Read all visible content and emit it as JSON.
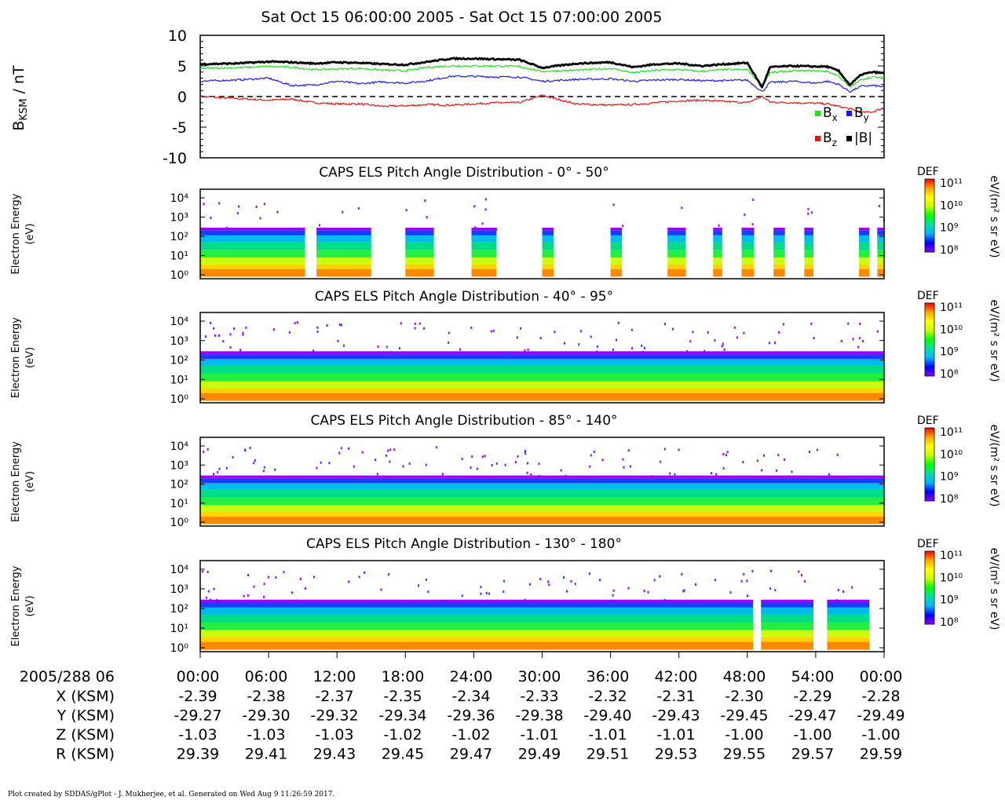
{
  "title": "Sat Oct 15 06:00:00 2005 - Sat Oct 15 07:00:00 2005",
  "footer": "Plot created by SDDAS/gPlot - J. Mukherjee, et al.  Generated on Wed Aug 9 11:26:59 2017.",
  "colors": {
    "bx": "#22dd22",
    "by": "#1a1aee",
    "bz": "#ee1111",
    "btotal": "#000000",
    "colorbar": [
      "#8b00ff",
      "#0000ff",
      "#00b4ff",
      "#00e0a0",
      "#00ff00",
      "#c8ff00",
      "#ffff00",
      "#ffa500",
      "#ff0000"
    ]
  },
  "chart_data": [
    {
      "type": "line",
      "ylabel": "B",
      "ylabel_sub": "KSM",
      "ylabel_unit": " / nT",
      "ylim": [
        -10,
        10
      ],
      "yticks": [
        "10",
        "5",
        "0",
        "-5",
        "-10"
      ],
      "zero_line": "dashed",
      "legend": [
        {
          "symbol": "B",
          "sub": "x",
          "color": "#22dd22"
        },
        {
          "symbol": "B",
          "sub": "y",
          "color": "#1a1aee"
        },
        {
          "symbol": "B",
          "sub": "z",
          "color": "#ee1111"
        },
        {
          "symbol": "|B|",
          "sub": "",
          "color": "#000000"
        }
      ],
      "x_minutes": [
        0,
        3,
        6,
        8,
        10,
        12,
        14,
        16,
        18,
        20,
        22,
        24,
        26,
        28,
        30,
        33,
        36,
        38,
        40,
        42,
        44,
        46,
        48,
        49.3,
        50,
        52,
        54,
        55,
        56,
        57,
        58,
        59,
        60
      ],
      "series": [
        {
          "name": "Bx",
          "values": [
            4.6,
            4.7,
            4.9,
            4.8,
            4.4,
            4.5,
            4.6,
            4.3,
            4.2,
            4.8,
            5.0,
            5.0,
            5.0,
            4.9,
            4.1,
            4.3,
            4.6,
            3.9,
            4.3,
            4.4,
            4.1,
            4.4,
            4.4,
            1.8,
            3.9,
            4.2,
            4.2,
            4.1,
            3.4,
            1.5,
            2.8,
            3.2,
            3.0
          ]
        },
        {
          "name": "By",
          "values": [
            2.5,
            2.7,
            3.0,
            1.8,
            1.9,
            2.5,
            2.1,
            2.4,
            2.2,
            2.6,
            3.3,
            3.3,
            3.2,
            3.2,
            2.5,
            2.8,
            2.9,
            2.5,
            2.7,
            2.8,
            2.6,
            2.6,
            2.7,
            0.8,
            2.3,
            2.5,
            2.2,
            2.5,
            2.0,
            0.8,
            1.7,
            1.8,
            1.6
          ]
        },
        {
          "name": "Bz",
          "values": [
            0.0,
            -0.3,
            -0.6,
            -0.4,
            -1.0,
            -1.2,
            -1.2,
            -1.6,
            -1.5,
            -1.3,
            -1.4,
            -1.2,
            -1.0,
            -1.0,
            0.2,
            -1.2,
            -1.4,
            -1.3,
            -1.0,
            -0.7,
            -0.6,
            -0.8,
            -1.0,
            0.0,
            -0.9,
            -1.0,
            -1.1,
            -1.2,
            -1.6,
            -2.0,
            -2.6,
            -2.5,
            -1.8
          ]
        },
        {
          "name": "|B|",
          "values": [
            5.3,
            5.4,
            5.7,
            5.6,
            5.4,
            5.6,
            5.5,
            5.3,
            5.2,
            5.7,
            6.2,
            6.2,
            6.1,
            6.0,
            4.7,
            5.4,
            5.6,
            4.8,
            5.3,
            5.4,
            5.0,
            5.3,
            5.5,
            1.5,
            4.8,
            5.0,
            4.9,
            4.9,
            4.2,
            1.9,
            3.6,
            4.0,
            3.8
          ]
        }
      ]
    },
    {
      "type": "heatmap",
      "title": "CAPS ELS Pitch Angle Distribution - 0° - 50°",
      "ylabel": "Electron Energy",
      "yunit": "(eV)",
      "yscale": "log",
      "yticks": [
        "10⁴",
        "10³",
        "10²",
        "10¹",
        "10⁰"
      ],
      "colorbar_label": "DEF",
      "colorbar_unit": "eV/(m² s sr eV)",
      "colorbar_ticks": [
        "10¹¹",
        "10¹⁰",
        "10⁹",
        "10⁸"
      ],
      "data_intervals_min": [
        [
          0,
          9.2
        ],
        [
          10.2,
          15
        ],
        [
          18,
          20.5
        ],
        [
          23.8,
          26
        ],
        [
          30,
          31
        ],
        [
          36,
          37
        ],
        [
          41,
          42.6
        ],
        [
          45,
          45.8
        ],
        [
          47.5,
          48.6
        ],
        [
          50.3,
          51.3
        ],
        [
          53,
          53.8
        ],
        [
          57.8,
          58.7
        ],
        [
          59.4,
          60
        ]
      ]
    },
    {
      "type": "heatmap",
      "title": "CAPS ELS Pitch Angle Distribution - 40° - 95°",
      "ylabel": "Electron Energy",
      "yunit": "(eV)",
      "yscale": "log",
      "yticks": [
        "10⁴",
        "10³",
        "10²",
        "10¹",
        "10⁰"
      ],
      "colorbar_label": "DEF",
      "colorbar_unit": "eV/(m² s sr eV)",
      "colorbar_ticks": [
        "10¹¹",
        "10¹⁰",
        "10⁹",
        "10⁸"
      ],
      "data_intervals_min": [
        [
          0,
          60
        ]
      ]
    },
    {
      "type": "heatmap",
      "title": "CAPS ELS Pitch Angle Distribution - 85° - 140°",
      "ylabel": "Electron Energy",
      "yunit": "(eV)",
      "yscale": "log",
      "yticks": [
        "10⁴",
        "10³",
        "10²",
        "10¹",
        "10⁰"
      ],
      "colorbar_label": "DEF",
      "colorbar_unit": "eV/(m² s sr eV)",
      "colorbar_ticks": [
        "10¹¹",
        "10¹⁰",
        "10⁹",
        "10⁸"
      ],
      "data_intervals_min": [
        [
          0,
          60
        ]
      ]
    },
    {
      "type": "heatmap",
      "title": "CAPS ELS Pitch Angle Distribution - 130° - 180°",
      "ylabel": "Electron Energy",
      "yunit": "(eV)",
      "yscale": "log",
      "yticks": [
        "10⁴",
        "10³",
        "10²",
        "10¹",
        "10⁰"
      ],
      "colorbar_label": "DEF",
      "colorbar_unit": "eV/(m² s sr eV)",
      "colorbar_ticks": [
        "10¹¹",
        "10¹⁰",
        "10⁹",
        "10⁸"
      ],
      "data_intervals_min": [
        [
          0,
          48.5
        ],
        [
          49.2,
          53.8
        ],
        [
          55,
          58.7
        ]
      ]
    },
    {
      "type": "table",
      "row_header": "2005/288 06",
      "columns": [
        "00:00",
        "06:00",
        "12:00",
        "18:00",
        "24:00",
        "30:00",
        "36:00",
        "42:00",
        "48:00",
        "54:00",
        "00:00"
      ],
      "rows": [
        {
          "label": "X (KSM)",
          "values": [
            "-2.39",
            "-2.38",
            "-2.37",
            "-2.35",
            "-2.34",
            "-2.33",
            "-2.32",
            "-2.31",
            "-2.30",
            "-2.29",
            "-2.28"
          ]
        },
        {
          "label": "Y (KSM)",
          "values": [
            "-29.27",
            "-29.30",
            "-29.32",
            "-29.34",
            "-29.36",
            "-29.38",
            "-29.40",
            "-29.43",
            "-29.45",
            "-29.47",
            "-29.49"
          ]
        },
        {
          "label": "Z (KSM)",
          "values": [
            "-1.03",
            "-1.03",
            "-1.03",
            "-1.02",
            "-1.02",
            "-1.01",
            "-1.01",
            "-1.01",
            "-1.00",
            "-1.00",
            "-1.00"
          ]
        },
        {
          "label": "R (KSM)",
          "values": [
            "29.39",
            "29.41",
            "29.43",
            "29.45",
            "29.47",
            "29.49",
            "29.51",
            "29.53",
            "29.55",
            "29.57",
            "29.59"
          ]
        }
      ]
    }
  ]
}
